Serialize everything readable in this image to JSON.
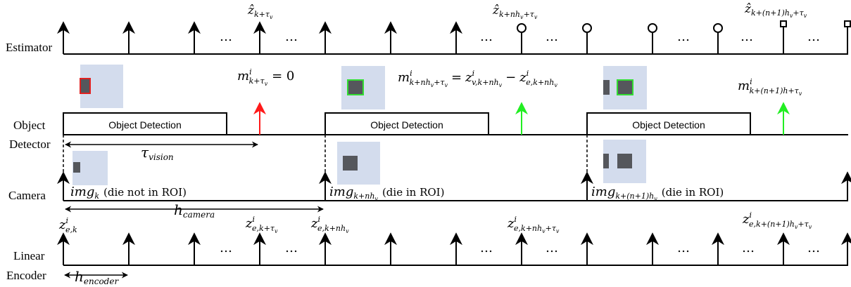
{
  "rows": {
    "estimator": "Estimator",
    "object": "Object",
    "detector": "Detector",
    "camera": "Camera",
    "linear": "Linear",
    "encoder": "Encoder"
  },
  "boxes": {
    "detection_1": "Object Detection",
    "detection_2": "Object Detection",
    "detection_3": "Object Detection"
  },
  "dots": "…",
  "estimator_labels": {
    "z1": "ẑ",
    "z1_sub": "k+τ",
    "z1_subsub": "v",
    "z2": "ẑ",
    "z2_sub": "k+nh",
    "z2_subsub1": "v",
    "z2_sub_mid": "+τ",
    "z2_subsub2": "v",
    "z3": "ẑ",
    "z3_sub": "k+(n+1)h",
    "z3_subsub1": "v",
    "z3_sub_mid": "+τ",
    "z3_subsub2": "v"
  },
  "measurement_labels": {
    "m1": "m",
    "m1_sup": "i",
    "m1_sub": "k+τ",
    "m1_subsub": "v",
    "m1_eq": "= 0",
    "m2": "m",
    "m2_sup": "i",
    "m2_sub": "k+nh",
    "m2_subsub1": "v",
    "m2_sub_mid": "+τ",
    "m2_subsub2": "v",
    "m2_eq": "=",
    "m2_z1": "z",
    "m2_z1_sup": "i",
    "m2_z1_sub": "v,k+nh",
    "m2_z1_subsub": "v",
    "m2_minus": "−",
    "m2_z2": "z",
    "m2_z2_sup": "i",
    "m2_z2_sub": "e,k+nh",
    "m2_z2_subsub": "v",
    "m3": "m",
    "m3_sup": "i",
    "m3_sub": "k+(n+1)h+τ",
    "m3_subsub": "v"
  },
  "timing_labels": {
    "tau": "τ",
    "tau_sub": "vision",
    "h_cam": "h",
    "h_cam_sub": "camera",
    "h_enc": "h",
    "h_enc_sub": "encoder"
  },
  "camera_labels": {
    "img1": "img",
    "img1_sub": "k",
    "img1_note": "(die not in ROI)",
    "img2": "img",
    "img2_sub": "k+nh",
    "img2_subsub": "v",
    "img2_note": "(die in ROI)",
    "img3": "img",
    "img3_sub": "k+(n+1)h",
    "img3_subsub": "v",
    "img3_note": "(die in ROI)"
  },
  "encoder_labels": {
    "e1": "z",
    "e1_sup": "i",
    "e1_sub": "e,k",
    "e2": "z",
    "e2_sup": "i",
    "e2_sub": "e,k+τ",
    "e2_subsub": "v",
    "e3": "z",
    "e3_sup": "i",
    "e3_sub": "e,k+nh",
    "e3_subsub": "v",
    "e4": "z",
    "e4_sup": "i",
    "e4_sub": "e,k+nh",
    "e4_subsub1": "v",
    "e4_sub_mid": "+τ",
    "e4_subsub2": "v",
    "e5": "z",
    "e5_sup": "i",
    "e5_sub": "e,k+(n+1)h",
    "e5_subsub1": "v",
    "e5_sub_mid": "+τ",
    "e5_subsub2": "v"
  },
  "colors": {
    "roi_fill": "#d3dced",
    "die": "#55575c",
    "roi_miss_border": "#e02020",
    "roi_hit_border": "#33dd33",
    "arrow_red": "#ff1a1a",
    "arrow_green": "#22ee22"
  }
}
